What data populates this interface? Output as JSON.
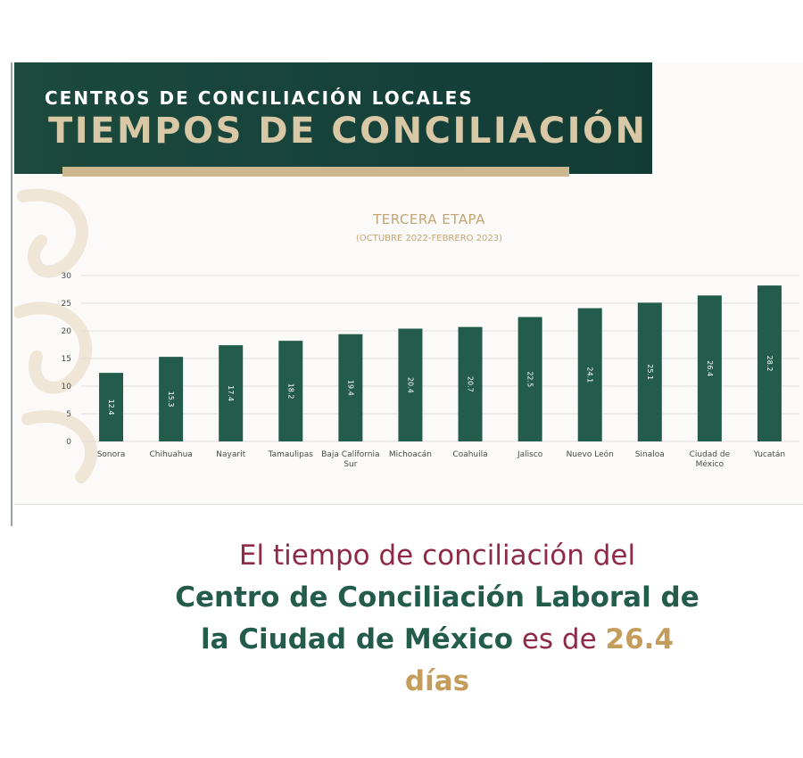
{
  "header": {
    "subtitle": "CENTROS DE CONCILIACIÓN LOCALES",
    "title": "TIEMPOS DE CONCILIACIÓN"
  },
  "chart_data": {
    "type": "bar",
    "title": "TERCERA ETAPA",
    "subtitle": "(OCTUBRE 2022-FEBRERO 2023)",
    "categories": [
      "Sonora",
      "Chihuahua",
      "Nayarit",
      "Tamaulipas",
      "Baja California Sur",
      "Michoacán",
      "Coahuila",
      "Jalisco",
      "Nuevo León",
      "Sinaloa",
      "Ciudad de México",
      "Yucatán"
    ],
    "category_lines": [
      [
        "Sonora"
      ],
      [
        "Chihuahua"
      ],
      [
        "Nayarit"
      ],
      [
        "Tamaulipas"
      ],
      [
        "Baja California",
        "Sur"
      ],
      [
        "Michoacán"
      ],
      [
        "Coahuila"
      ],
      [
        "Jalisco"
      ],
      [
        "Nuevo León"
      ],
      [
        "Sinaloa"
      ],
      [
        "Ciudad de",
        "México"
      ],
      [
        "Yucatán"
      ]
    ],
    "values": [
      12.4,
      15.3,
      17.4,
      18.2,
      19.4,
      20.4,
      20.7,
      22.5,
      24.1,
      25.1,
      26.4,
      28.2
    ],
    "value_labels": [
      "12.4",
      "15.3",
      "17.4",
      "18.2",
      "19.4",
      "20.4",
      "20.7",
      "22.5",
      "24.1",
      "25.1",
      "26.4",
      "28.2"
    ],
    "yticks": [
      0,
      5,
      10,
      15,
      20,
      25,
      30
    ],
    "ylim": [
      0,
      30
    ],
    "grid": true,
    "legend": "none",
    "colors": {
      "bar": "#235c4a",
      "grid": "#e1dfdb",
      "title": "#c3a574",
      "tick": "#4a4a4a"
    }
  },
  "caption": {
    "part1": "El tiempo de conciliación del",
    "part2": "Centro de Conciliación Laboral de",
    "part3": "la Ciudad de México",
    "part4": " es de ",
    "part5": "26.4",
    "part6": "días"
  }
}
